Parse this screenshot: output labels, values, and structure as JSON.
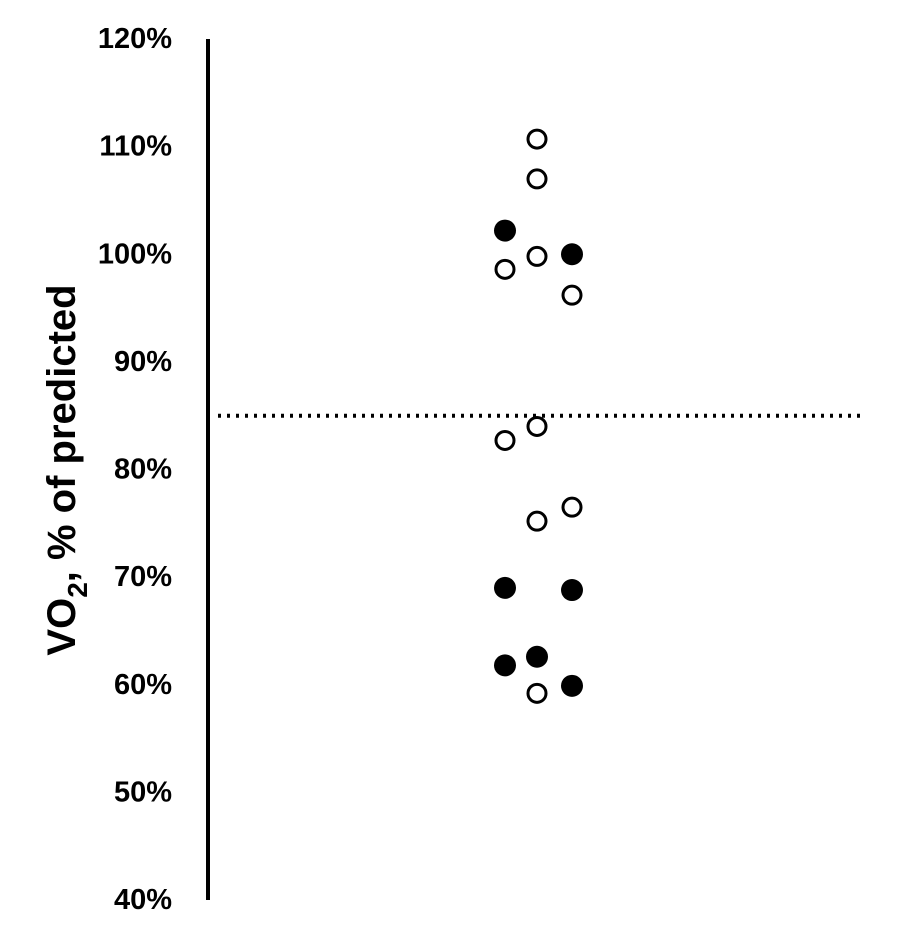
{
  "chart_data": {
    "type": "scatter",
    "title": "",
    "xlabel": "",
    "ylabel": {
      "prefix": "VO",
      "subscript": "2",
      "suffix": ", % of predicted"
    },
    "ylim": [
      40,
      120
    ],
    "yticks": [
      "40%",
      "50%",
      "60%",
      "70%",
      "80%",
      "90%",
      "100%",
      "110%",
      "120%"
    ],
    "xlim": [
      0.5,
      3.5
    ],
    "reference_line": {
      "y": 85,
      "style": "dotted"
    },
    "grid": false,
    "legend": "none",
    "series": [
      {
        "marker": "filled-circle",
        "color": "#000000",
        "points": [
          {
            "x": 1,
            "y": 102.2
          },
          {
            "x": 3,
            "y": 100.0
          },
          {
            "x": 1,
            "y": 69.0
          },
          {
            "x": 3,
            "y": 68.8
          },
          {
            "x": 1,
            "y": 61.8
          },
          {
            "x": 2,
            "y": 62.6
          },
          {
            "x": 3,
            "y": 59.9
          }
        ]
      },
      {
        "marker": "open-circle",
        "color": "#000000",
        "points": [
          {
            "x": 2,
            "y": 110.7
          },
          {
            "x": 2,
            "y": 107.0
          },
          {
            "x": 1,
            "y": 98.6
          },
          {
            "x": 2,
            "y": 99.8
          },
          {
            "x": 3,
            "y": 96.2
          },
          {
            "x": 2,
            "y": 84.0
          },
          {
            "x": 1,
            "y": 82.7
          },
          {
            "x": 2,
            "y": 75.2
          },
          {
            "x": 3,
            "y": 76.5
          },
          {
            "x": 2,
            "y": 59.2
          }
        ]
      }
    ]
  }
}
